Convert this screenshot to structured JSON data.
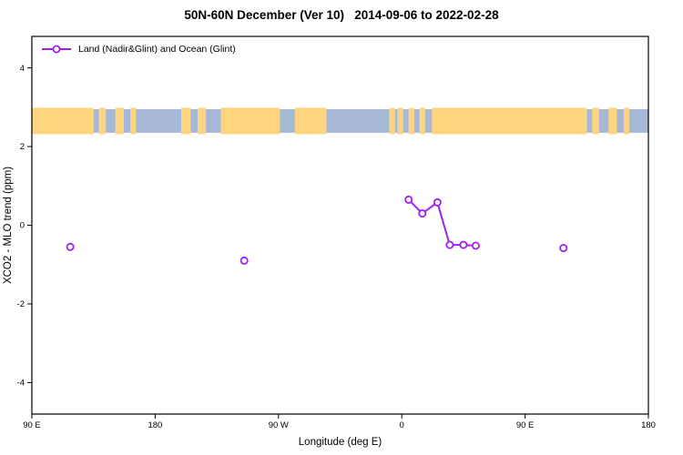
{
  "title": "50N-60N December (Ver 10)   2014-09-06 to 2022-02-28",
  "legend": {
    "label": "Land (Nadir&Glint) and Ocean (Glint)"
  },
  "colors": {
    "series": "#A020F0",
    "marker_fill": "#FFFFFF",
    "land": "#FFD47E",
    "ocean": "#A7B8D6",
    "frame": "#000000",
    "background": "#FFFFFF"
  },
  "chart_data": {
    "type": "scatter",
    "title": "50N-60N December (Ver 10)   2014-09-06 to 2022-02-28",
    "xlabel": "Longitude (deg E)",
    "ylabel": "XCO2 - MLO trend (ppm)",
    "xlim": [
      90,
      540
    ],
    "ylim": [
      -4.8,
      4.8
    ],
    "grid": false,
    "legend_label": "Land (Nadir&Glint) and Ocean (Glint)",
    "legend_position": "top-left",
    "x_ticks": [
      {
        "value": 90,
        "label": "90 E"
      },
      {
        "value": 180,
        "label": "180"
      },
      {
        "value": 270,
        "label": "90 W"
      },
      {
        "value": 360,
        "label": "0"
      },
      {
        "value": 450,
        "label": "90 E"
      },
      {
        "value": 540,
        "label": "180"
      }
    ],
    "y_ticks": [
      {
        "value": -4,
        "label": "-4"
      },
      {
        "value": -2,
        "label": "-2"
      },
      {
        "value": 0,
        "label": "0"
      },
      {
        "value": 2,
        "label": "2"
      },
      {
        "value": 4,
        "label": "4"
      }
    ],
    "series": [
      {
        "name": "connected-cluster",
        "mode": "line+markers",
        "points": [
          [
            365,
            0.65
          ],
          [
            375,
            0.3
          ],
          [
            386,
            0.58
          ],
          [
            395,
            -0.5
          ],
          [
            405,
            -0.5
          ],
          [
            414,
            -0.52
          ]
        ]
      },
      {
        "name": "isolated-points",
        "mode": "markers",
        "points": [
          [
            118,
            -0.55
          ],
          [
            245,
            -0.9
          ],
          [
            478,
            -0.58
          ]
        ]
      }
    ],
    "map_band": {
      "description": "50N-60N latitude world-map strip (land=yellow, ocean=blue)",
      "y_top": 2.95,
      "y_bottom": 2.35,
      "segments": [
        {
          "from": 90,
          "to": 135,
          "surface": "land"
        },
        {
          "from": 135,
          "to": 139,
          "surface": "ocean"
        },
        {
          "from": 139,
          "to": 144,
          "surface": "land"
        },
        {
          "from": 144,
          "to": 151,
          "surface": "ocean"
        },
        {
          "from": 151,
          "to": 157,
          "surface": "land"
        },
        {
          "from": 157,
          "to": 162,
          "surface": "ocean"
        },
        {
          "from": 162,
          "to": 166,
          "surface": "land"
        },
        {
          "from": 166,
          "to": 199,
          "surface": "ocean"
        },
        {
          "from": 199,
          "to": 206,
          "surface": "land"
        },
        {
          "from": 206,
          "to": 211,
          "surface": "ocean"
        },
        {
          "from": 211,
          "to": 217,
          "surface": "land"
        },
        {
          "from": 217,
          "to": 228,
          "surface": "ocean"
        },
        {
          "from": 228,
          "to": 271,
          "surface": "land"
        },
        {
          "from": 271,
          "to": 282,
          "surface": "ocean"
        },
        {
          "from": 282,
          "to": 305,
          "surface": "land"
        },
        {
          "from": 305,
          "to": 351,
          "surface": "ocean"
        },
        {
          "from": 351,
          "to": 355,
          "surface": "land"
        },
        {
          "from": 355,
          "to": 357,
          "surface": "ocean"
        },
        {
          "from": 357,
          "to": 361,
          "surface": "land"
        },
        {
          "from": 361,
          "to": 365,
          "surface": "ocean"
        },
        {
          "from": 365,
          "to": 369,
          "surface": "land"
        },
        {
          "from": 369,
          "to": 373,
          "surface": "ocean"
        },
        {
          "from": 373,
          "to": 377,
          "surface": "land"
        },
        {
          "from": 377,
          "to": 382,
          "surface": "ocean"
        },
        {
          "from": 382,
          "to": 495,
          "surface": "land"
        },
        {
          "from": 495,
          "to": 499,
          "surface": "ocean"
        },
        {
          "from": 499,
          "to": 504,
          "surface": "land"
        },
        {
          "from": 504,
          "to": 511,
          "surface": "ocean"
        },
        {
          "from": 511,
          "to": 517,
          "surface": "land"
        },
        {
          "from": 517,
          "to": 522,
          "surface": "ocean"
        },
        {
          "from": 522,
          "to": 526,
          "surface": "land"
        },
        {
          "from": 526,
          "to": 540,
          "surface": "ocean"
        }
      ]
    }
  }
}
